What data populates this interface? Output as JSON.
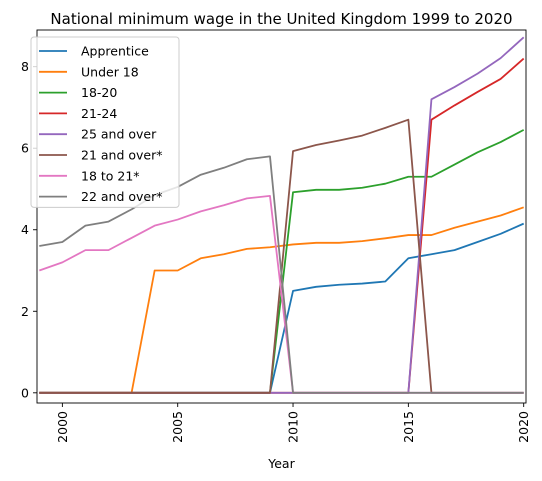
{
  "chart_data": {
    "type": "line",
    "title": "National minimum wage in the United Kingdom 1999 to 2020",
    "xlabel": "Year",
    "ylabel": "",
    "xlim": [
      1998.9,
      2020.1
    ],
    "ylim": [
      -0.25,
      8.9
    ],
    "xticks": [
      2000,
      2005,
      2010,
      2015,
      2020
    ],
    "yticks": [
      0,
      2,
      4,
      6,
      8
    ],
    "legend_position": "upper-left",
    "grid": false,
    "x": [
      1999,
      2000,
      2001,
      2002,
      2003,
      2004,
      2005,
      2006,
      2007,
      2008,
      2009,
      2010,
      2011,
      2012,
      2013,
      2014,
      2015,
      2016,
      2017,
      2018,
      2019,
      2020
    ],
    "series": [
      {
        "name": "Apprentice",
        "color": "#1f77b4",
        "values": [
          0,
          0,
          0,
          0,
          0,
          0,
          0,
          0,
          0,
          0,
          0,
          2.5,
          2.6,
          2.65,
          2.68,
          2.73,
          3.3,
          3.4,
          3.5,
          3.7,
          3.9,
          4.15
        ]
      },
      {
        "name": "Under 18",
        "color": "#ff7f0e",
        "values": [
          0,
          0,
          0,
          0,
          0,
          3.0,
          3.0,
          3.3,
          3.4,
          3.53,
          3.57,
          3.64,
          3.68,
          3.68,
          3.72,
          3.79,
          3.87,
          3.87,
          4.05,
          4.2,
          4.35,
          4.55
        ]
      },
      {
        "name": "18-20",
        "color": "#2ca02c",
        "values": [
          0,
          0,
          0,
          0,
          0,
          0,
          0,
          0,
          0,
          0,
          0,
          4.92,
          4.98,
          4.98,
          5.03,
          5.13,
          5.3,
          5.3,
          5.6,
          5.9,
          6.15,
          6.45
        ]
      },
      {
        "name": "21-24",
        "color": "#d62728",
        "values": [
          0,
          0,
          0,
          0,
          0,
          0,
          0,
          0,
          0,
          0,
          0,
          0,
          0,
          0,
          0,
          0,
          0,
          6.7,
          7.05,
          7.38,
          7.7,
          8.2
        ]
      },
      {
        "name": "25 and over",
        "color": "#9467bd",
        "values": [
          0,
          0,
          0,
          0,
          0,
          0,
          0,
          0,
          0,
          0,
          0,
          0,
          0,
          0,
          0,
          0,
          0,
          7.2,
          7.5,
          7.83,
          8.21,
          8.72
        ]
      },
      {
        "name": "21 and over*",
        "color": "#8c564b",
        "values": [
          0,
          0,
          0,
          0,
          0,
          0,
          0,
          0,
          0,
          0,
          0,
          5.93,
          6.08,
          6.19,
          6.31,
          6.5,
          6.7,
          0,
          0,
          0,
          0,
          0
        ]
      },
      {
        "name": "18 to 21*",
        "color": "#e377c2",
        "values": [
          3.0,
          3.2,
          3.5,
          3.5,
          3.8,
          4.1,
          4.25,
          4.45,
          4.6,
          4.77,
          4.83,
          0,
          0,
          0,
          0,
          0,
          0,
          0,
          0,
          0,
          0,
          0
        ]
      },
      {
        "name": "22 and over*",
        "color": "#7f7f7f",
        "values": [
          3.6,
          3.7,
          4.1,
          4.2,
          4.5,
          4.85,
          5.05,
          5.35,
          5.52,
          5.73,
          5.8,
          0,
          0,
          0,
          0,
          0,
          0,
          0,
          0,
          0,
          0,
          0
        ]
      }
    ]
  }
}
